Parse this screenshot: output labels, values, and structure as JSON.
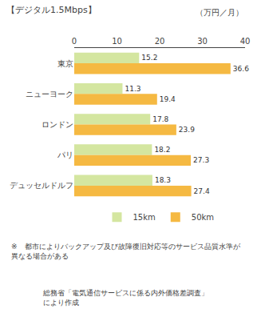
{
  "chart_data": {
    "type": "bar",
    "orientation": "horizontal",
    "title": "【デジタル1.5Mbps】",
    "x_label": "（万円／月）",
    "categories": [
      "東京",
      "ニューヨーク",
      "ロンドン",
      "パリ",
      "デュッセルドルフ"
    ],
    "series": [
      {
        "name": "15km",
        "color": "#d4e6a0",
        "values": [
          15.2,
          11.3,
          17.8,
          18.2,
          18.3
        ]
      },
      {
        "name": "50km",
        "color": "#f5b942",
        "values": [
          36.6,
          19.4,
          23.9,
          27.3,
          27.4
        ]
      }
    ],
    "xlim": [
      0,
      40
    ],
    "xticks": [
      0,
      10,
      20,
      30,
      40
    ],
    "data_labels": true,
    "grid": false,
    "legend": "bottom",
    "annotations": [
      "※　都市によりバックアップ及び故障復旧対応等のサービス品質水準が異なる場合がある",
      "総務省「電気通信サービスに係る内外価格差調査」\nにより作成"
    ]
  }
}
